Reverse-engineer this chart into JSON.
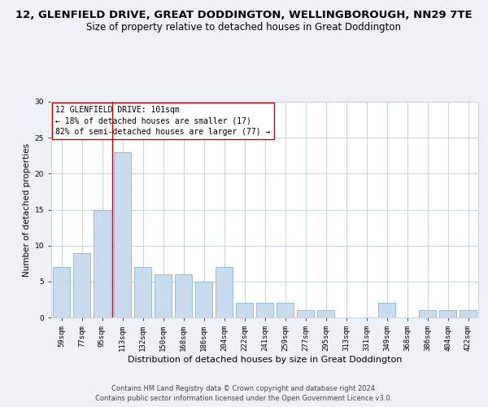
{
  "title": "12, GLENFIELD DRIVE, GREAT DODDINGTON, WELLINGBOROUGH, NN29 7TE",
  "subtitle": "Size of property relative to detached houses in Great Doddington",
  "xlabel": "Distribution of detached houses by size in Great Doddington",
  "ylabel": "Number of detached properties",
  "categories": [
    "59sqm",
    "77sqm",
    "95sqm",
    "113sqm",
    "132sqm",
    "150sqm",
    "168sqm",
    "186sqm",
    "204sqm",
    "222sqm",
    "241sqm",
    "259sqm",
    "277sqm",
    "295sqm",
    "313sqm",
    "331sqm",
    "349sqm",
    "368sqm",
    "386sqm",
    "404sqm",
    "422sqm"
  ],
  "values": [
    7,
    9,
    15,
    23,
    7,
    6,
    6,
    5,
    7,
    2,
    2,
    2,
    1,
    1,
    0,
    0,
    2,
    0,
    1,
    1,
    1
  ],
  "bar_color": "#c8dced",
  "bar_edge_color": "#8ab4d4",
  "highlight_line_index": 2,
  "highlight_line_color": "#cc0000",
  "annotation_line1": "12 GLENFIELD DRIVE: 101sqm",
  "annotation_line2": "← 18% of detached houses are smaller (17)",
  "annotation_line3": "82% of semi-detached houses are larger (77) →",
  "annotation_box_color": "#ffffff",
  "annotation_box_edge_color": "#cc0000",
  "ylim": [
    0,
    30
  ],
  "yticks": [
    0,
    5,
    10,
    15,
    20,
    25,
    30
  ],
  "footer_line1": "Contains HM Land Registry data © Crown copyright and database right 2024.",
  "footer_line2": "Contains public sector information licensed under the Open Government Licence v3.0.",
  "background_color": "#eef2f7",
  "plot_background_color": "#ffffff",
  "grid_color": "#c8d4e0",
  "title_fontsize": 9.5,
  "subtitle_fontsize": 8.5,
  "xlabel_fontsize": 8,
  "ylabel_fontsize": 7.5,
  "tick_fontsize": 6.5,
  "annotation_fontsize": 7,
  "footer_fontsize": 6
}
